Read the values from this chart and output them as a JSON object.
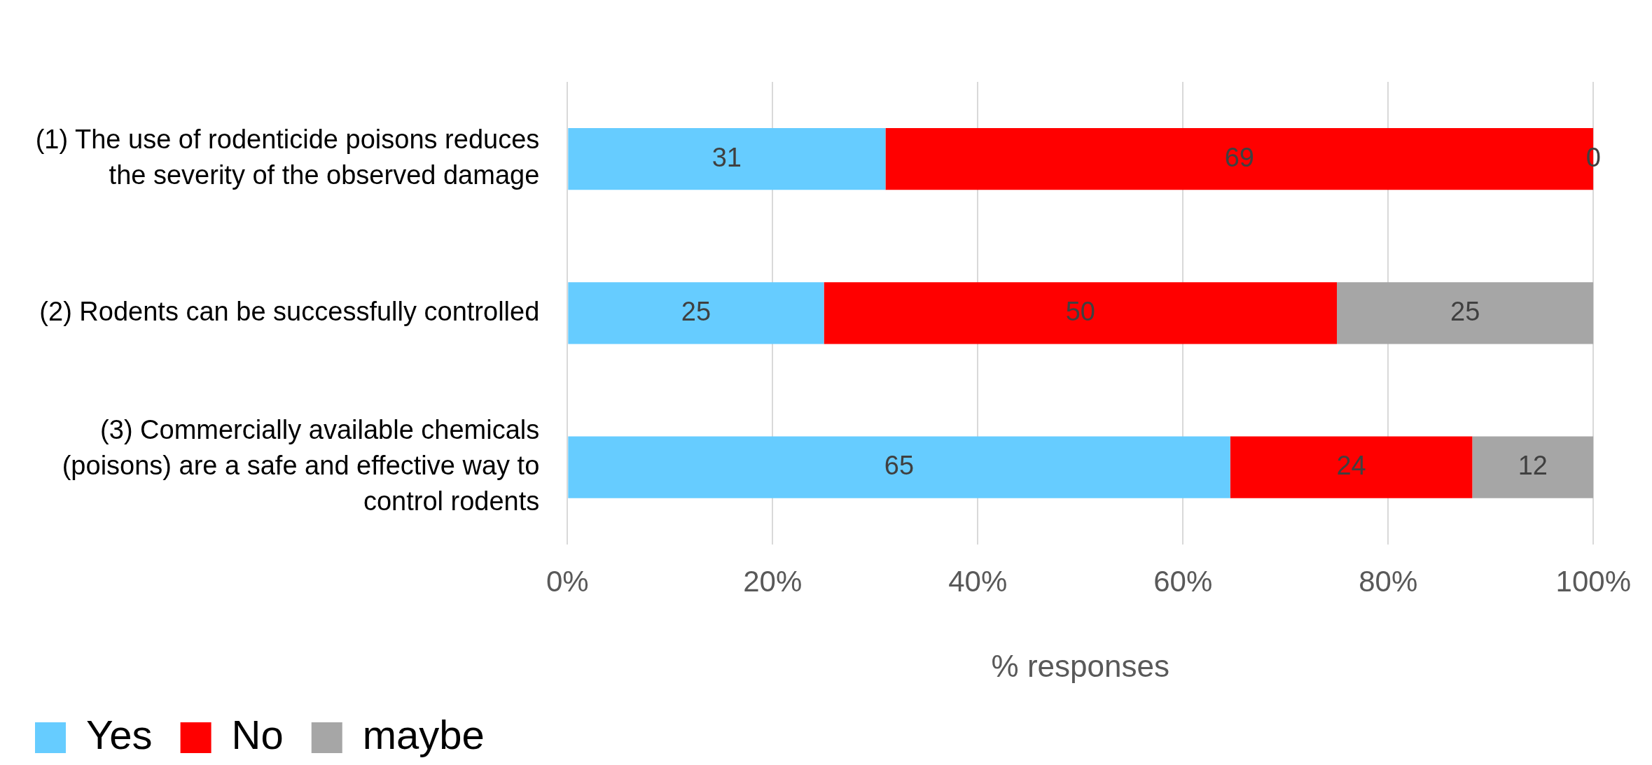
{
  "chart_data": {
    "type": "bar",
    "orientation": "horizontal",
    "stacked": true,
    "categories": [
      "(1) The use of rodenticide poisons reduces the severity of the observed damage",
      "(2) Rodents can be successfully controlled",
      "(3) Commercially available chemicals (poisons) are a safe and effective way to control rodents"
    ],
    "series": [
      {
        "name": "Yes",
        "color": "#66ccff",
        "values": [
          31,
          25,
          64.6
        ],
        "value_labels": [
          "31",
          "25",
          "65"
        ]
      },
      {
        "name": "No",
        "color": "#ff0000",
        "values": [
          69,
          50,
          23.6
        ],
        "value_labels": [
          "69",
          "50",
          "24"
        ]
      },
      {
        "name": "maybe",
        "color": "#a6a6a6",
        "values": [
          0,
          25,
          11.8
        ],
        "value_labels": [
          "0",
          "25",
          "12"
        ]
      }
    ],
    "xlim": [
      0,
      100
    ],
    "xticks": [
      {
        "value": 0,
        "label": "0%"
      },
      {
        "value": 20,
        "label": "20%"
      },
      {
        "value": 40,
        "label": "40%"
      },
      {
        "value": 60,
        "label": "60%"
      },
      {
        "value": 80,
        "label": "80%"
      },
      {
        "value": 100,
        "label": "100%"
      }
    ],
    "xlabel": "% responses",
    "grid": "x",
    "legend": "bottom left"
  }
}
